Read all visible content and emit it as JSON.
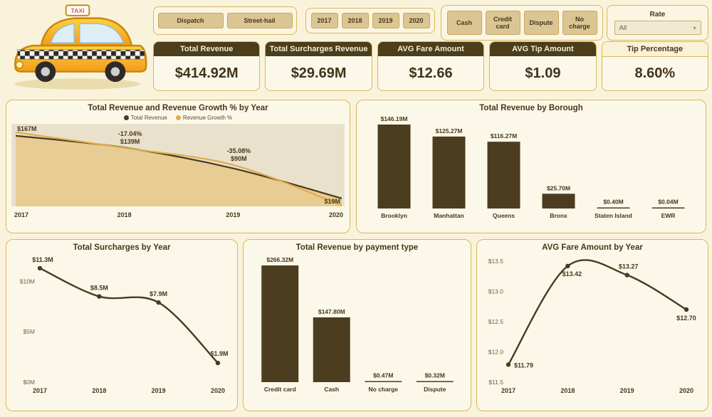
{
  "theme": {
    "page_bg": "#FAF3DC",
    "panel_bg": "#FCF8E9",
    "border_gold": "#D9B75A",
    "dark_brown": "#4A3B20",
    "gold_line": "#E2AC4A",
    "tan_area": "#E7CD93",
    "plot_bg": "#E9E1CB",
    "bar_color": "#4C3D20"
  },
  "filters": {
    "trip_types": [
      "Dispatch",
      "Street-hail"
    ],
    "years": [
      "2017",
      "2018",
      "2019",
      "2020"
    ],
    "payment_types": [
      "Cash",
      "Credit card",
      "Dispute",
      "No charge"
    ],
    "rate_label": "Rate",
    "rate_value": "All"
  },
  "kpis": [
    {
      "label": "Total Revenue",
      "value": "$414.92M"
    },
    {
      "label": "Total Surcharges Revenue",
      "value": "$29.69M"
    },
    {
      "label": "AVG Fare Amount",
      "value": "$12.66"
    },
    {
      "label": "AVG Tip Amount",
      "value": "$1.09"
    },
    {
      "label": "Tip Percentage",
      "value": "8.60%"
    }
  ],
  "chart_data": [
    {
      "type": "area",
      "title": "Total Revenue and Revenue Growth % by Year",
      "categories": [
        "2017",
        "2018",
        "2019",
        "2020"
      ],
      "series": [
        {
          "name": "Total Revenue",
          "values": [
            167,
            139,
            90,
            19
          ],
          "unit": "$M"
        },
        {
          "name": "Revenue Growth %",
          "values": [
            null,
            -17.04,
            -35.08,
            null
          ],
          "unit": "%"
        }
      ],
      "point_labels": [
        [
          "$167M"
        ],
        [
          "-17.04%",
          "$139M"
        ],
        [
          "-35.08%",
          "$90M"
        ],
        [
          "$19M"
        ]
      ],
      "legend_position": "top"
    },
    {
      "type": "bar",
      "title": "Total Revenue by Borough",
      "categories": [
        "Brooklyn",
        "Manhattan",
        "Queens",
        "Bronx",
        "Staten Island",
        "EWR"
      ],
      "values": [
        146.19,
        125.27,
        116.27,
        25.7,
        0.4,
        0.04
      ],
      "labels": [
        "$146.19M",
        "$125.27M",
        "$116.27M",
        "$25.70M",
        "$0.40M",
        "$0.04M"
      ]
    },
    {
      "type": "line",
      "title": "Total Surcharges by Year",
      "categories": [
        "2017",
        "2018",
        "2019",
        "2020"
      ],
      "values": [
        11.3,
        8.5,
        7.9,
        1.9
      ],
      "labels": [
        "$11.3M",
        "$8.5M",
        "$7.9M",
        "$1.9M"
      ],
      "y_ticks": [
        "$0M",
        "$5M",
        "$10M"
      ],
      "ylim": [
        0,
        12
      ]
    },
    {
      "type": "bar",
      "title": "Total Revenue by payment type",
      "categories": [
        "Credit card",
        "Cash",
        "No charge",
        "Dispute"
      ],
      "values": [
        266.32,
        147.8,
        0.47,
        0.32
      ],
      "labels": [
        "$266.32M",
        "$147.80M",
        "$0.47M",
        "$0.32M"
      ]
    },
    {
      "type": "line",
      "title": "AVG Fare Amount by Year",
      "categories": [
        "2017",
        "2018",
        "2019",
        "2020"
      ],
      "values": [
        11.79,
        13.42,
        13.27,
        12.7
      ],
      "labels": [
        "$11.79",
        "$13.42",
        "$13.27",
        "$12.70"
      ],
      "y_ticks": [
        "$11.5",
        "$12.0",
        "$12.5",
        "$13.0",
        "$13.5"
      ],
      "ylim": [
        11.5,
        13.5
      ]
    }
  ]
}
